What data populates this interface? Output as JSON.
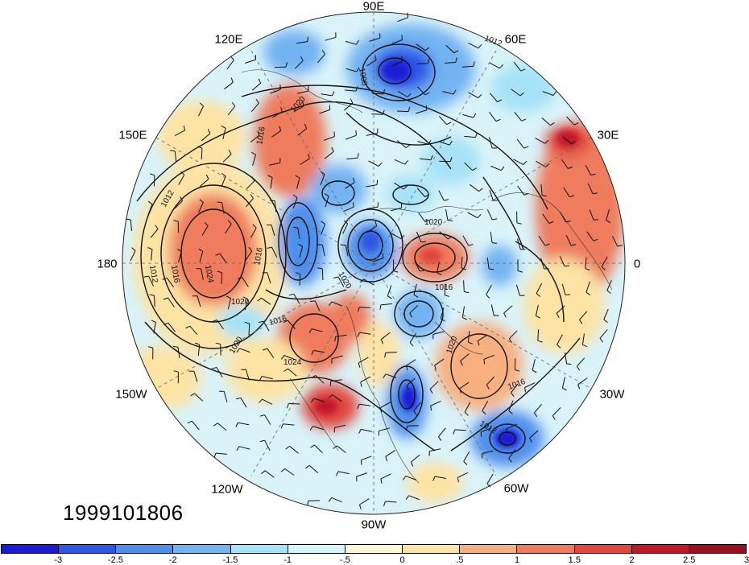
{
  "timestamp": "1999101806",
  "longitude_labels": [
    {
      "key": "90e",
      "text": "90E"
    },
    {
      "key": "60e",
      "text": "60E"
    },
    {
      "key": "30e",
      "text": "30E"
    },
    {
      "key": "0",
      "text": "0"
    },
    {
      "key": "30w",
      "text": "30W"
    },
    {
      "key": "60w",
      "text": "60W"
    },
    {
      "key": "90w",
      "text": "90W"
    },
    {
      "key": "120w",
      "text": "120W"
    },
    {
      "key": "150w",
      "text": "150W"
    },
    {
      "key": "180",
      "text": "180"
    },
    {
      "key": "150e",
      "text": "150E"
    },
    {
      "key": "120e",
      "text": "120E"
    }
  ],
  "isobar_labels": [
    "1012",
    "1008",
    "1020",
    "1016",
    "1024"
  ],
  "colorbar": {
    "colors": [
      "#1a1ad6",
      "#2d57e6",
      "#4f8fec",
      "#73b3f2",
      "#a6e2f8",
      "#d6f5fb",
      "#fdf8d8",
      "#fde3a4",
      "#f8b081",
      "#ee7b5d",
      "#e0473e",
      "#c0182a",
      "#9a0e22"
    ],
    "labels": [
      "-3",
      "-2.5",
      "-2",
      "-1.5",
      "-1",
      "-.5",
      "0",
      ".5",
      "1",
      "1.5",
      "2",
      "2.5",
      "3"
    ]
  }
}
